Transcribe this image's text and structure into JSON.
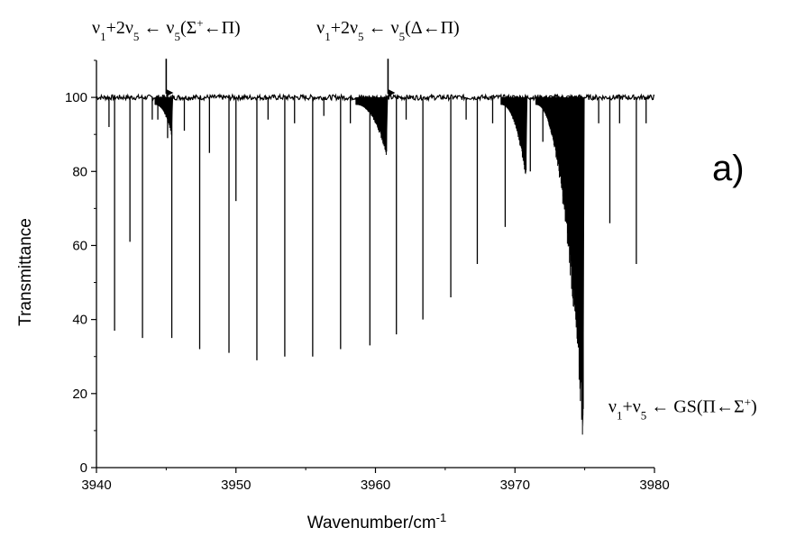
{
  "chart_data": {
    "type": "line",
    "title": "",
    "panel_label": "a)",
    "xlabel": "Wavenumber/cm",
    "xlabel_superscript": "-1",
    "ylabel": "Transmittance",
    "xlim": [
      3940,
      3980
    ],
    "ylim": [
      0,
      110
    ],
    "xticks": [
      3940,
      3950,
      3960,
      3970,
      3980
    ],
    "yticks": [
      0,
      20,
      40,
      60,
      80,
      100
    ],
    "grid": false,
    "baseline": 100,
    "series": [
      {
        "lines": [
          {
            "x": 3940.9,
            "y": 92
          },
          {
            "x": 3941.3,
            "y": 37
          },
          {
            "x": 3942.4,
            "y": 61
          },
          {
            "x": 3943.3,
            "y": 35
          },
          {
            "x": 3944.0,
            "y": 94
          },
          {
            "x": 3944.4,
            "y": 94
          },
          {
            "x": 3945.1,
            "y": 89
          },
          {
            "x": 3945.4,
            "y": 35
          },
          {
            "x": 3946.3,
            "y": 91
          },
          {
            "x": 3947.4,
            "y": 32
          },
          {
            "x": 3948.1,
            "y": 85
          },
          {
            "x": 3949.5,
            "y": 31
          },
          {
            "x": 3950.0,
            "y": 72
          },
          {
            "x": 3951.5,
            "y": 29
          },
          {
            "x": 3952.3,
            "y": 94
          },
          {
            "x": 3953.5,
            "y": 30
          },
          {
            "x": 3954.2,
            "y": 93
          },
          {
            "x": 3955.5,
            "y": 30
          },
          {
            "x": 3956.3,
            "y": 95
          },
          {
            "x": 3957.5,
            "y": 32
          },
          {
            "x": 3958.2,
            "y": 93
          },
          {
            "x": 3959.6,
            "y": 33
          },
          {
            "x": 3960.3,
            "y": 92
          },
          {
            "x": 3961.5,
            "y": 36
          },
          {
            "x": 3962.2,
            "y": 94
          },
          {
            "x": 3963.4,
            "y": 40
          },
          {
            "x": 3965.4,
            "y": 46
          },
          {
            "x": 3966.5,
            "y": 94
          },
          {
            "x": 3967.3,
            "y": 55
          },
          {
            "x": 3968.4,
            "y": 93
          },
          {
            "x": 3969.3,
            "y": 65
          },
          {
            "x": 3971.1,
            "y": 80
          },
          {
            "x": 3972.0,
            "y": 88
          },
          {
            "x": 3976.0,
            "y": 93
          },
          {
            "x": 3976.8,
            "y": 66
          },
          {
            "x": 3977.5,
            "y": 93
          },
          {
            "x": 3978.7,
            "y": 55
          },
          {
            "x": 3979.4,
            "y": 93
          }
        ],
        "bands": [
          {
            "x_start": 3944.2,
            "x_end": 3945.4,
            "y_start": 98,
            "y_end": 90
          },
          {
            "x_start": 3958.6,
            "x_end": 3960.8,
            "y_start": 98,
            "y_end": 85
          },
          {
            "x_start": 3969.0,
            "x_end": 3970.8,
            "y_start": 98,
            "y_end": 79
          },
          {
            "x_start": 3971.5,
            "x_end": 3974.9,
            "y_start": 98,
            "y_end": 11
          }
        ]
      }
    ],
    "annotations": [
      {
        "parts": [
          {
            "t": "ν"
          },
          {
            "t": "1",
            "sub": true
          },
          {
            "t": "+2ν"
          },
          {
            "t": "5",
            "sub": true
          },
          {
            "t": " ← ν"
          },
          {
            "t": "5",
            "sub": true
          },
          {
            "t": "(Σ"
          },
          {
            "t": "+",
            "sup": true
          },
          {
            "t": "←Π)"
          }
        ],
        "x": 3945.0,
        "y": 0,
        "pointer_x": 3945.0,
        "pointer_y": 108,
        "pointer_y_end": 101
      },
      {
        "parts": [
          {
            "t": "ν"
          },
          {
            "t": "1",
            "sub": true
          },
          {
            "t": "+2ν"
          },
          {
            "t": "5",
            "sub": true
          },
          {
            "t": " ← ν"
          },
          {
            "t": "5",
            "sub": true
          },
          {
            "t": "(Δ←Π)"
          }
        ],
        "x": 3960.9,
        "y": 0,
        "pointer_x": 3960.9,
        "pointer_y": 108,
        "pointer_y_end": 101
      },
      {
        "parts": [
          {
            "t": "ν"
          },
          {
            "t": "1",
            "sub": true
          },
          {
            "t": "+ν"
          },
          {
            "t": "5",
            "sub": true
          },
          {
            "t": " ← GS(Π←Σ"
          },
          {
            "t": "+",
            "sup": true
          },
          {
            "t": ")"
          }
        ],
        "x": 3976.7,
        "y": 15
      }
    ]
  }
}
